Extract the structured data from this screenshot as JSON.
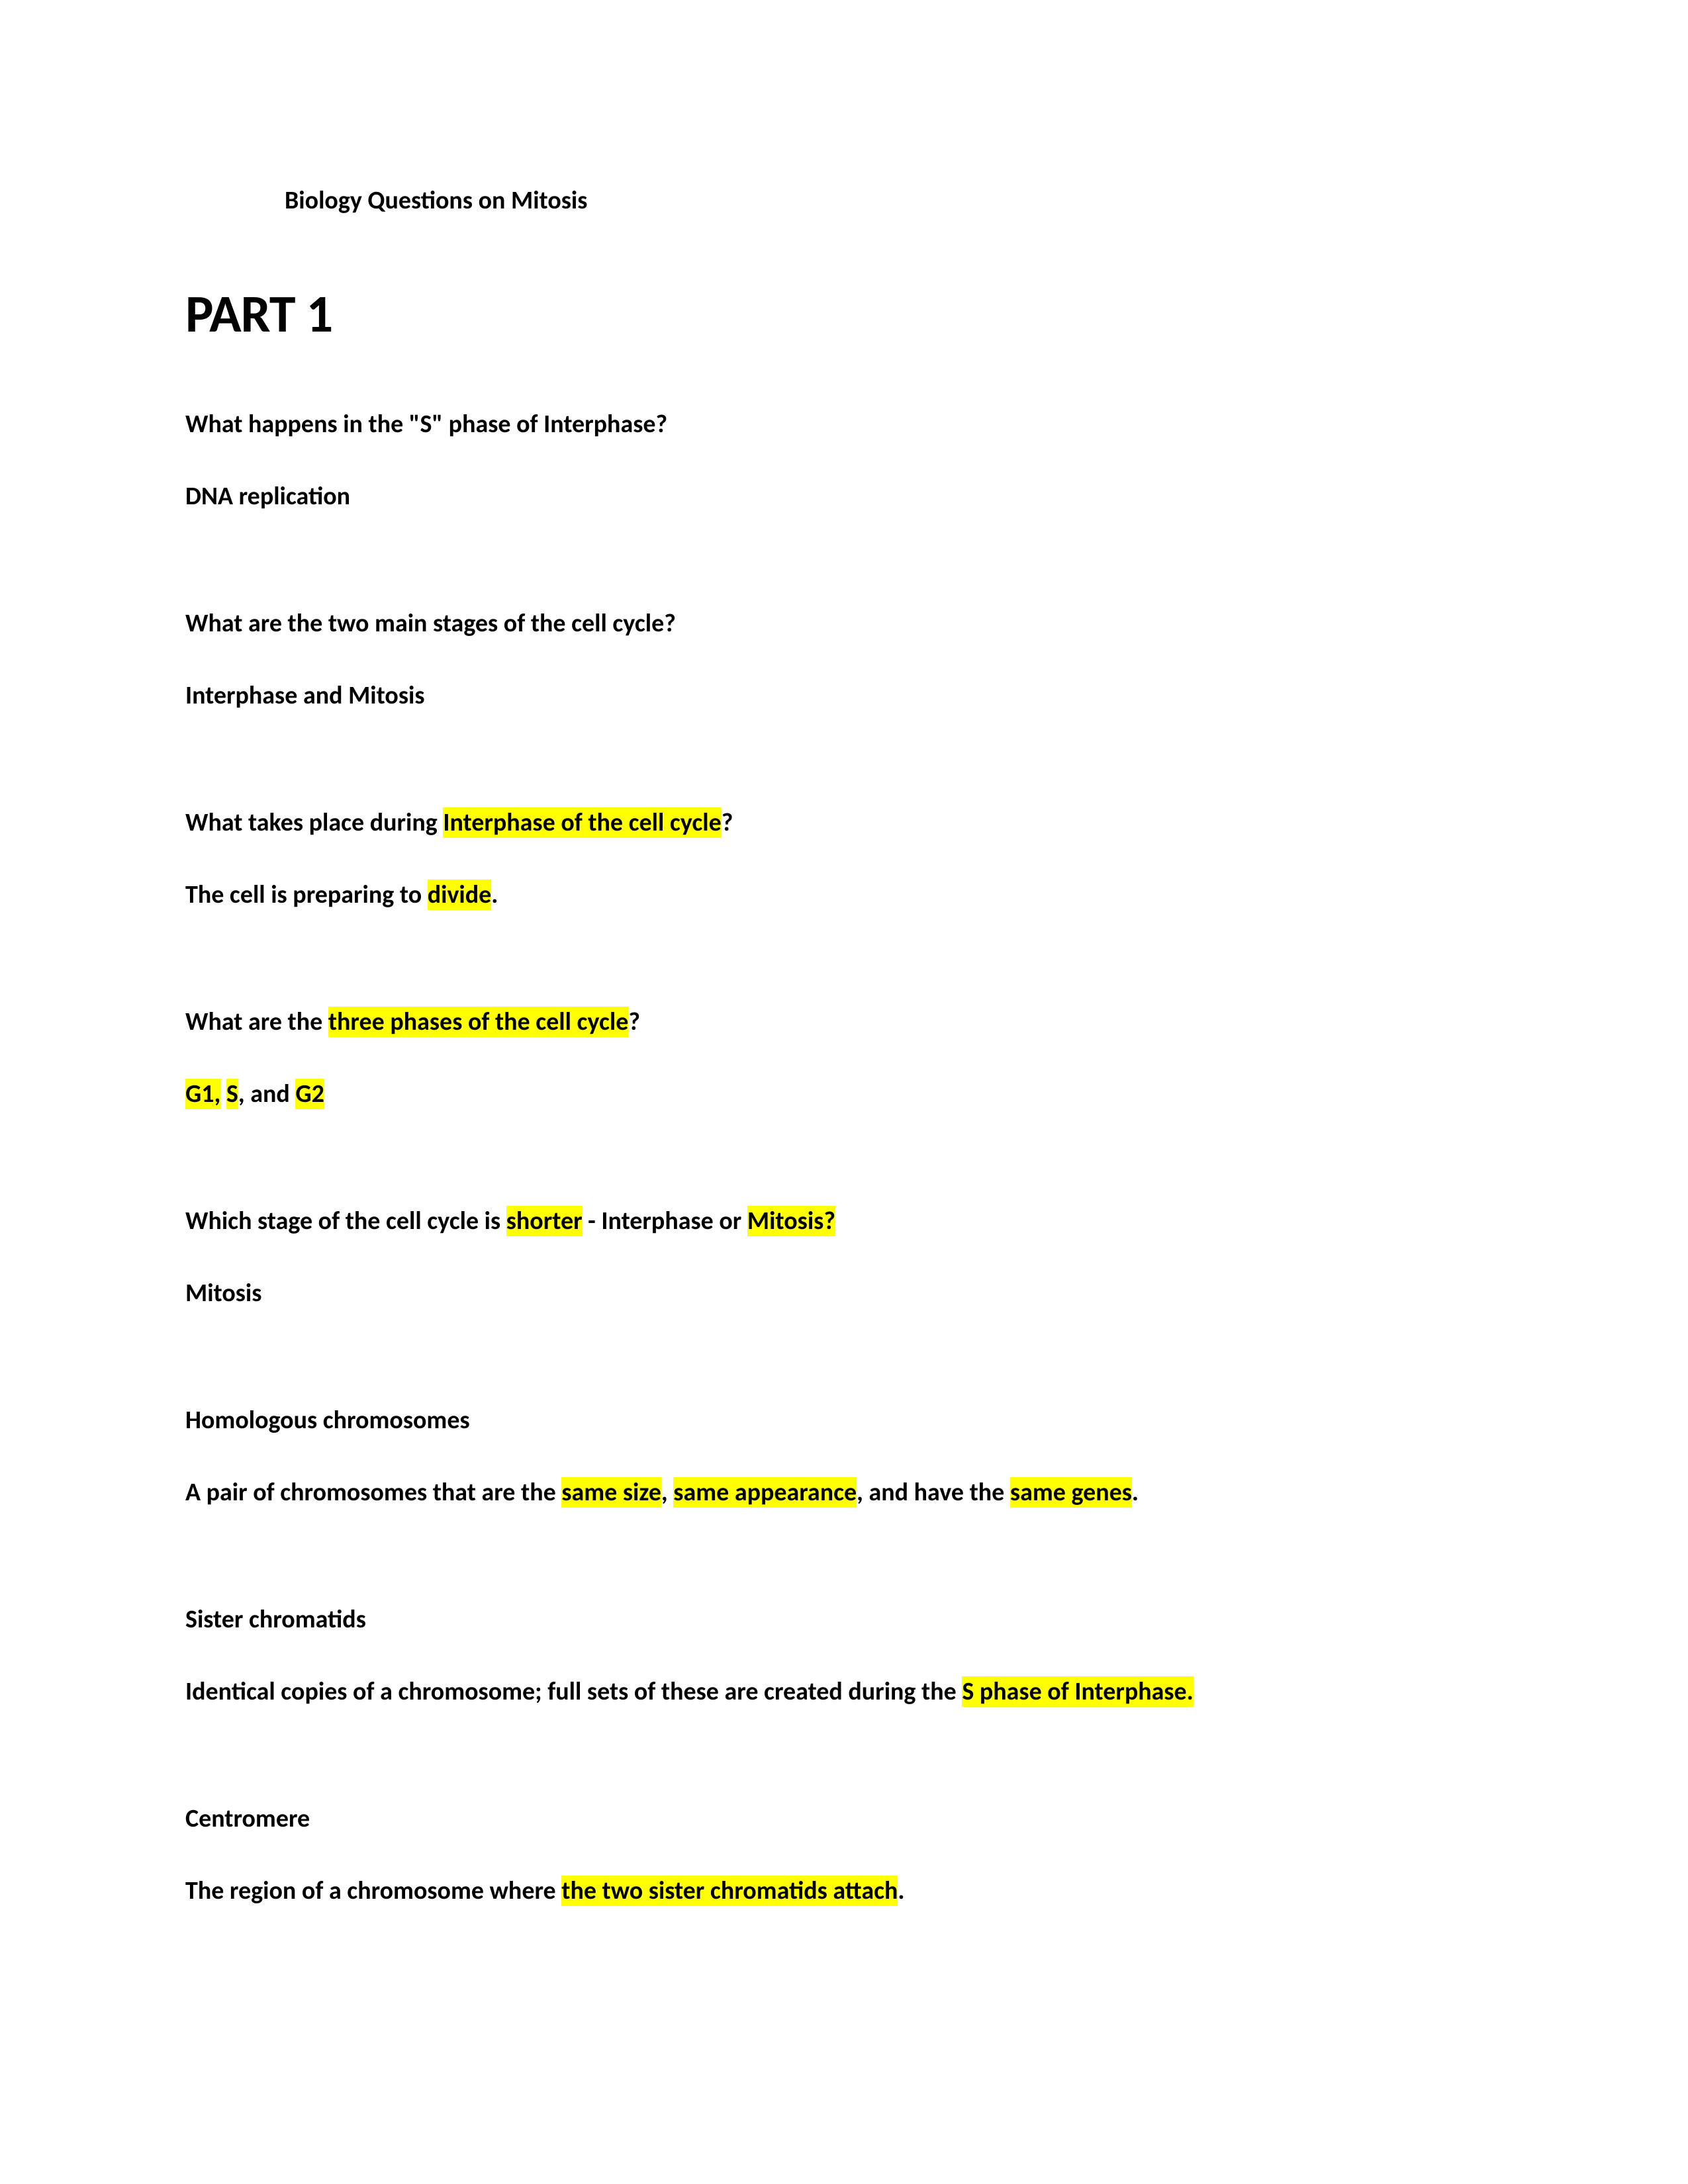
{
  "doc": {
    "title": "Biology Questions on Mitosis",
    "part_heading": "PART 1"
  },
  "colors": {
    "background": "#ffffff",
    "text": "#000000",
    "highlight": "#ffff00"
  },
  "typography": {
    "body_font_size_pt": 14,
    "heading_font_size_pt": 30,
    "font_family": "Calibri",
    "weight": "bold"
  },
  "items": [
    {
      "q_segments": [
        {
          "text": "What happens in the \"S\" phase of Interphase?",
          "hl": false
        }
      ],
      "a_segments": [
        {
          "text": "DNA replication",
          "hl": false
        }
      ]
    },
    {
      "q_segments": [
        {
          "text": "What are the two main stages of the cell cycle?",
          "hl": false
        }
      ],
      "a_segments": [
        {
          "text": "Interphase and Mitosis",
          "hl": false
        }
      ]
    },
    {
      "q_segments": [
        {
          "text": "What takes place during ",
          "hl": false
        },
        {
          "text": "Interphase of the cell cycle",
          "hl": true
        },
        {
          "text": "?",
          "hl": false
        }
      ],
      "a_segments": [
        {
          "text": "The cell is preparing to ",
          "hl": false
        },
        {
          "text": "divide",
          "hl": true
        },
        {
          "text": ".",
          "hl": false
        }
      ]
    },
    {
      "q_segments": [
        {
          "text": "What are the ",
          "hl": false
        },
        {
          "text": "three phases of the cell cycle",
          "hl": true
        },
        {
          "text": "?",
          "hl": false
        }
      ],
      "a_segments": [
        {
          "text": "G1,",
          "hl": true
        },
        {
          "text": " ",
          "hl": false
        },
        {
          "text": "S",
          "hl": true
        },
        {
          "text": ", and ",
          "hl": false
        },
        {
          "text": "G2",
          "hl": true
        }
      ]
    },
    {
      "q_segments": [
        {
          "text": "Which stage of the cell cycle is ",
          "hl": false
        },
        {
          "text": "shorter",
          "hl": true
        },
        {
          "text": " - Interphase or ",
          "hl": false
        },
        {
          "text": "Mitosis?",
          "hl": true
        }
      ],
      "a_segments": [
        {
          "text": "Mitosis",
          "hl": false
        }
      ]
    },
    {
      "q_segments": [
        {
          "text": "Homologous chromosomes",
          "hl": false
        }
      ],
      "a_segments": [
        {
          "text": "A pair of chromosomes that are the ",
          "hl": false
        },
        {
          "text": "same size",
          "hl": true
        },
        {
          "text": ", ",
          "hl": false
        },
        {
          "text": "same appearance",
          "hl": true
        },
        {
          "text": ", and have the ",
          "hl": false
        },
        {
          "text": "same genes",
          "hl": true
        },
        {
          "text": ".",
          "hl": false
        }
      ]
    },
    {
      "q_segments": [
        {
          "text": "Sister chromatids",
          "hl": false
        }
      ],
      "a_segments": [
        {
          "text": "Identical copies of a chromosome; full sets of these are created during the ",
          "hl": false
        },
        {
          "text": "S phase of Interphase.",
          "hl": true
        }
      ]
    },
    {
      "q_segments": [
        {
          "text": "Centromere",
          "hl": false
        }
      ],
      "a_segments": [
        {
          "text": "The region of a chromosome where ",
          "hl": false
        },
        {
          "text": "the two sister chromatids attach",
          "hl": true
        },
        {
          "text": ".",
          "hl": false
        }
      ]
    }
  ]
}
